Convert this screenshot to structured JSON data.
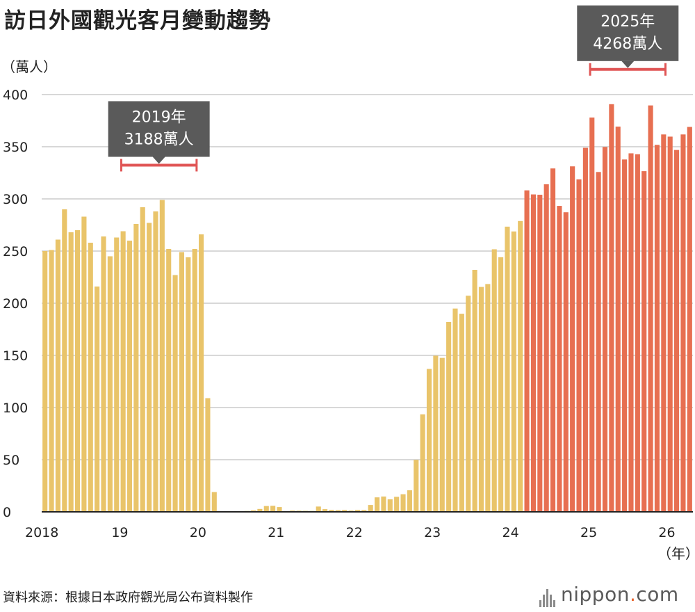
{
  "title": "訪日外國觀光客月變動趨勢",
  "unit_label": "（萬人）",
  "x_unit_label": "（年）",
  "source": "資料來源：根據日本政府觀光局公布資料製作",
  "brand": {
    "name": "nippon",
    "dot": ".",
    "suffix": "com"
  },
  "colors": {
    "early": "#e9c46a",
    "recent": "#e76f51",
    "grid": "#cccccc",
    "callout_bg": "#5a5a5a",
    "bracket": "#e05555"
  },
  "chart_data": {
    "type": "bar",
    "title": "訪日外國觀光客月變動趨勢",
    "ylabel": "（萬人）",
    "xlabel": "（年）",
    "ylim": [
      0,
      400
    ],
    "yticks": [
      0,
      50,
      100,
      150,
      200,
      250,
      300,
      350,
      400
    ],
    "xtick_labels": [
      {
        "label": "2018",
        "index": 0
      },
      {
        "label": "19",
        "index": 12
      },
      {
        "label": "20",
        "index": 24
      },
      {
        "label": "21",
        "index": 36
      },
      {
        "label": "22",
        "index": 48
      },
      {
        "label": "23",
        "index": 60
      },
      {
        "label": "24",
        "index": 72
      },
      {
        "label": "25",
        "index": 84
      },
      {
        "label": "26",
        "index": 96
      }
    ],
    "grid": true,
    "series": [
      {
        "start": "2018-01",
        "values": [
          250,
          251,
          261,
          290,
          268,
          270,
          283,
          258,
          216,
          264,
          245,
          263,
          269,
          260,
          276,
          292,
          277,
          288,
          299,
          252,
          227,
          249,
          244,
          252,
          266,
          109,
          19,
          0.3,
          0.2,
          0.3,
          0.4,
          0.9,
          1.4,
          2.8,
          5.6,
          5.8,
          4.6,
          0.7,
          1.2,
          1.1,
          1.0,
          0.9,
          5.1,
          2.6,
          1.8,
          1.6,
          1.8,
          1.2,
          1.8,
          1.7,
          6.6,
          13.9,
          14.7,
          12.0,
          14.4,
          16.9,
          20.7,
          49.9,
          93.5,
          137.0,
          149.7,
          147.6,
          182.0,
          194.9,
          189.9,
          207.2,
          232.0,
          215.6,
          218.4,
          251.7,
          244.1,
          273.4,
          268.8,
          278.8,
          308.2,
          304.3,
          304.0,
          314.0,
          329.2,
          293.3,
          287.2,
          331.2,
          318.7,
          349.0,
          378.0,
          325.8,
          349.8,
          390.8,
          369.3,
          337.8,
          343.7,
          342.8,
          326.6,
          389.6,
          351.8,
          361.8,
          359.7,
          346.9,
          361.8,
          369.0
        ],
        "highlight_from_index": 74
      }
    ],
    "annotations": [
      {
        "lines": [
          "2019年",
          "3188萬人"
        ],
        "from_index": 12,
        "to_index": 23
      },
      {
        "lines": [
          "2025年",
          "4268萬人"
        ],
        "from_index": 84,
        "to_index": 95
      }
    ]
  }
}
